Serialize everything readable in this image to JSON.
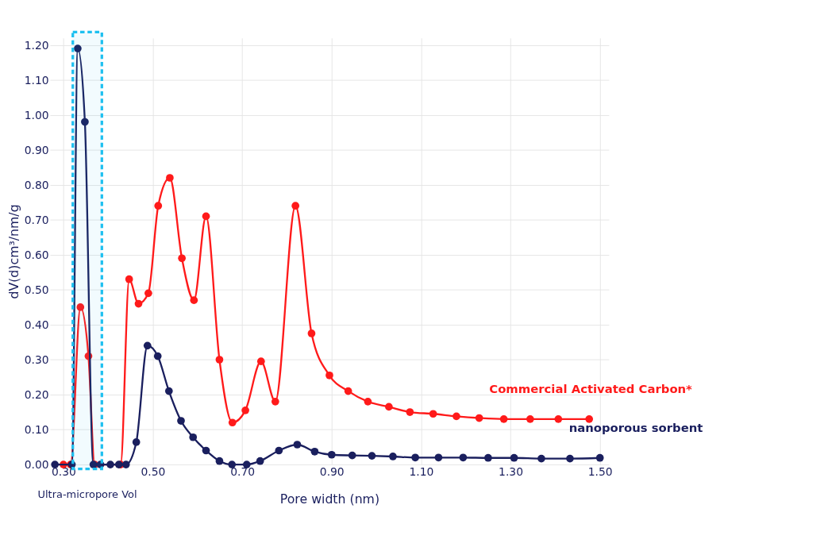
{
  "chart_data": {
    "type": "line",
    "xlabel": "Pore width (nm)",
    "ylabel": "dV(d)cm³/nm/g",
    "xlim": [
      0.27,
      1.52
    ],
    "ylim": [
      0,
      1.22
    ],
    "xticks": [
      {
        "value": 0.3,
        "label": "0.30"
      },
      {
        "value": 0.5,
        "label": "0.50"
      },
      {
        "value": 0.7,
        "label": "0.70"
      },
      {
        "value": 0.9,
        "label": "0.90"
      },
      {
        "value": 1.1,
        "label": "1.10"
      },
      {
        "value": 1.3,
        "label": "1.30"
      },
      {
        "value": 1.5,
        "label": "1.50"
      }
    ],
    "yticks": [
      {
        "value": 0,
        "label": "0.00"
      },
      {
        "value": 0.1,
        "label": "0.10"
      },
      {
        "value": 0.2,
        "label": "0.20"
      },
      {
        "value": 0.3,
        "label": "0.30"
      },
      {
        "value": 0.4,
        "label": "0.40"
      },
      {
        "value": 0.5,
        "label": "0.50"
      },
      {
        "value": 0.6,
        "label": "0.60"
      },
      {
        "value": 0.7,
        "label": "0.70"
      },
      {
        "value": 0.8,
        "label": "0.80"
      },
      {
        "value": 0.9,
        "label": "0.90"
      },
      {
        "value": 1.0,
        "label": "1.00"
      },
      {
        "value": 1.1,
        "label": "1.10"
      },
      {
        "value": 1.2,
        "label": "1.20"
      }
    ],
    "grid": true,
    "legend": false,
    "marker": "circle",
    "line_style": "solid",
    "series": [
      {
        "name": "Commercial Activated Carbon*",
        "color": "#ff1a1a",
        "x": [
          0.3,
          0.316,
          0.338,
          0.356,
          0.37,
          0.428,
          0.447,
          0.468,
          0.49,
          0.512,
          0.538,
          0.565,
          0.592,
          0.619,
          0.649,
          0.678,
          0.707,
          0.742,
          0.774,
          0.819,
          0.855,
          0.895,
          0.937,
          0.981,
          1.028,
          1.075,
          1.127,
          1.179,
          1.23,
          1.285,
          1.344,
          1.407,
          1.476
        ],
        "values": [
          0,
          0,
          0.45,
          0.31,
          0,
          0,
          0.53,
          0.46,
          0.49,
          0.74,
          0.82,
          0.59,
          0.47,
          0.71,
          0.3,
          0.12,
          0.155,
          0.295,
          0.18,
          0.74,
          0.375,
          0.255,
          0.21,
          0.18,
          0.165,
          0.15,
          0.145,
          0.138,
          0.133,
          0.13,
          0.13,
          0.13,
          0.13
        ]
      },
      {
        "name": "nanoporous sorbent",
        "color": "#1a1f5e",
        "x": [
          0.281,
          0.319,
          0.332,
          0.348,
          0.367,
          0.383,
          0.405,
          0.424,
          0.44,
          0.463,
          0.488,
          0.511,
          0.536,
          0.563,
          0.59,
          0.619,
          0.649,
          0.677,
          0.71,
          0.74,
          0.782,
          0.823,
          0.862,
          0.9,
          0.946,
          0.99,
          1.037,
          1.087,
          1.139,
          1.194,
          1.25,
          1.308,
          1.369,
          1.433,
          1.5
        ],
        "values": [
          0,
          0,
          1.19,
          0.98,
          0,
          0,
          0,
          0,
          0,
          0.064,
          0.34,
          0.31,
          0.21,
          0.125,
          0.078,
          0.04,
          0.01,
          0,
          0,
          0.01,
          0.04,
          0.057,
          0.037,
          0.028,
          0.026,
          0.025,
          0.023,
          0.02,
          0.02,
          0.02,
          0.019,
          0.019,
          0.017,
          0.017,
          0.019
        ]
      }
    ],
    "bands": [
      {
        "axis": "x",
        "from": 0.321,
        "to": 0.386,
        "label": "Ultra-micropore Vol",
        "color": "#1ec0f0"
      }
    ]
  }
}
